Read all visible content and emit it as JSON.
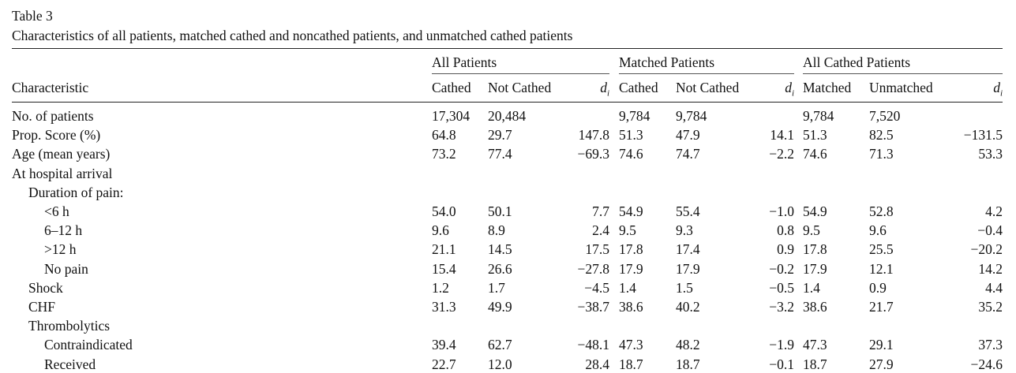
{
  "caption": {
    "label": "Table 3",
    "title": "Characteristics of all patients, matched cathed and noncathed patients, and unmatched cathed patients"
  },
  "groups": [
    "All Patients",
    "Matched Patients",
    "All Cathed Patients"
  ],
  "columns": {
    "characteristic": "Characteristic",
    "heads": [
      "Cathed",
      "Not Cathed",
      "di",
      "Cathed",
      "Not Cathed",
      "di",
      "Matched",
      "Unmatched",
      "di"
    ]
  },
  "rows": [
    {
      "label": "No. of patients",
      "indent": 0,
      "values": [
        "17,304",
        "20,484",
        "",
        "9,784",
        "9,784",
        "",
        "9,784",
        "7,520",
        ""
      ]
    },
    {
      "label": "Prop. Score (%)",
      "indent": 0,
      "values": [
        "64.8",
        "29.7",
        "147.8",
        "51.3",
        "47.9",
        "14.1",
        "51.3",
        "82.5",
        "−131.5"
      ]
    },
    {
      "label": "Age (mean years)",
      "indent": 0,
      "values": [
        "73.2",
        "77.4",
        "−69.3",
        "74.6",
        "74.7",
        "−2.2",
        "74.6",
        "71.3",
        "53.3"
      ]
    },
    {
      "label": "At hospital arrival",
      "indent": 0,
      "values": [
        "",
        "",
        "",
        "",
        "",
        "",
        "",
        "",
        ""
      ]
    },
    {
      "label": "Duration of pain:",
      "indent": 1,
      "values": [
        "",
        "",
        "",
        "",
        "",
        "",
        "",
        "",
        ""
      ]
    },
    {
      "label": "<6 h",
      "indent": 2,
      "values": [
        "54.0",
        "50.1",
        "7.7",
        "54.9",
        "55.4",
        "−1.0",
        "54.9",
        "52.8",
        "4.2"
      ]
    },
    {
      "label": "6–12 h",
      "indent": 2,
      "values": [
        "9.6",
        "8.9",
        "2.4",
        "9.5",
        "9.3",
        "0.8",
        "9.5",
        "9.6",
        "−0.4"
      ]
    },
    {
      "label": ">12 h",
      "indent": 2,
      "values": [
        "21.1",
        "14.5",
        "17.5",
        "17.8",
        "17.4",
        "0.9",
        "17.8",
        "25.5",
        "−20.2"
      ]
    },
    {
      "label": "No pain",
      "indent": 2,
      "values": [
        "15.4",
        "26.6",
        "−27.8",
        "17.9",
        "17.9",
        "−0.2",
        "17.9",
        "12.1",
        "14.2"
      ]
    },
    {
      "label": "Shock",
      "indent": 1,
      "values": [
        "1.2",
        "1.7",
        "−4.5",
        "1.4",
        "1.5",
        "−0.5",
        "1.4",
        "0.9",
        "4.4"
      ]
    },
    {
      "label": "CHF",
      "indent": 1,
      "values": [
        "31.3",
        "49.9",
        "−38.7",
        "38.6",
        "40.2",
        "−3.2",
        "38.6",
        "21.7",
        "35.2"
      ]
    },
    {
      "label": "Thrombolytics",
      "indent": 1,
      "values": [
        "",
        "",
        "",
        "",
        "",
        "",
        "",
        "",
        ""
      ]
    },
    {
      "label": "Contraindicated",
      "indent": 2,
      "values": [
        "39.4",
        "62.7",
        "−48.1",
        "47.3",
        "48.2",
        "−1.9",
        "47.3",
        "29.1",
        "37.3"
      ]
    },
    {
      "label": "Received",
      "indent": 2,
      "values": [
        "22.7",
        "12.0",
        "28.4",
        "18.7",
        "18.7",
        "−0.1",
        "18.7",
        "27.9",
        "−24.6"
      ]
    }
  ]
}
